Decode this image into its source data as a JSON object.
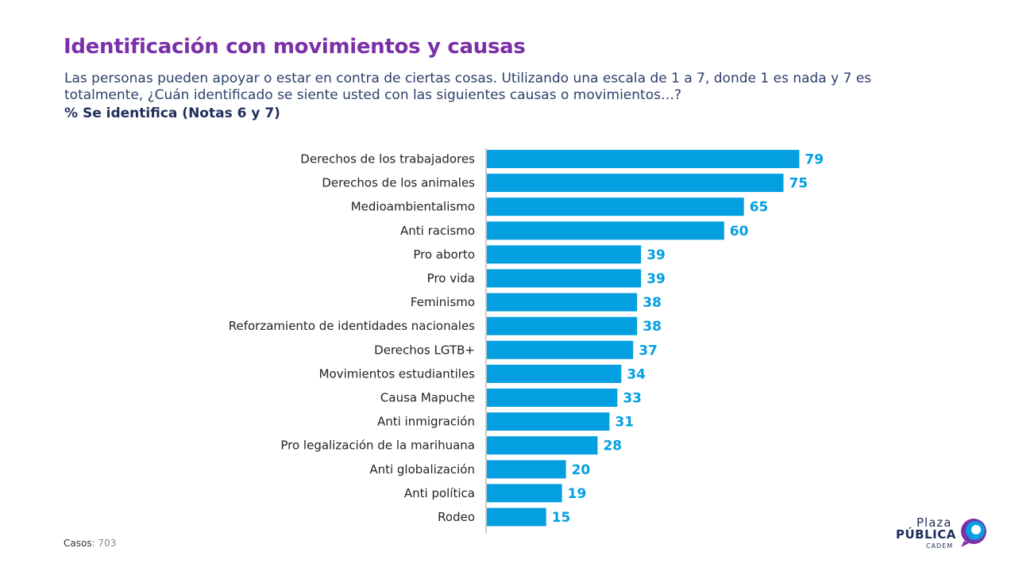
{
  "page": {
    "title": "Identificación con movimientos y causas",
    "subtitle": "Las personas pueden apoyar o estar en contra de ciertas cosas. Utilizando una escala de 1 a 7, donde 1 es nada y 7 es totalmente, ¿Cuán identificado se siente usted con las siguientes causas o movimientos…?",
    "metric_label": "% Se identifica (Notas 6 y 7)"
  },
  "footer": {
    "cases_label": "Casos",
    "cases_value": ": 703"
  },
  "logo": {
    "line1": "Plaza",
    "line2": "PÚBLICA",
    "line3": "CADEM"
  },
  "colors": {
    "bar": "#039fe0",
    "value_label": "#039fe0",
    "title": "#7b2fa8",
    "text": "#1f2d5a"
  },
  "chart_data": {
    "type": "bar",
    "orientation": "horizontal",
    "categories": [
      "Derechos de los trabajadores",
      "Derechos de los animales",
      "Medioambientalismo",
      "Anti racismo",
      "Pro aborto",
      "Pro vida",
      "Feminismo",
      "Reforzamiento de identidades nacionales",
      "Derechos LGTB+",
      "Movimientos estudiantiles",
      "Causa Mapuche",
      "Anti inmigración",
      "Pro legalización de la marihuana",
      "Anti globalización",
      "Anti política",
      "Rodeo"
    ],
    "values": [
      79,
      75,
      65,
      60,
      39,
      39,
      38,
      38,
      37,
      34,
      33,
      31,
      28,
      20,
      19,
      15
    ],
    "xlim": [
      0,
      100
    ],
    "grid": false,
    "legend": false
  }
}
